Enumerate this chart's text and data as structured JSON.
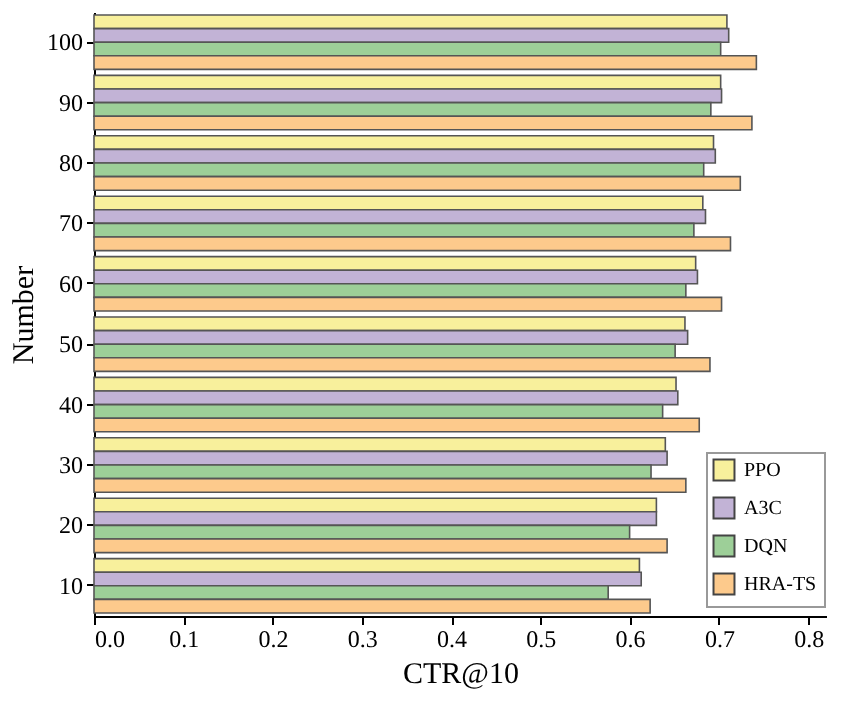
{
  "chart_data": {
    "type": "bar",
    "orientation": "horizontal",
    "xlabel": "CTR@10",
    "ylabel": "Number",
    "categories": [
      "100",
      "90",
      "80",
      "70",
      "60",
      "50",
      "40",
      "30",
      "20",
      "10"
    ],
    "series": [
      {
        "name": "PPO",
        "color": "#f8f09c",
        "values": [
          0.709,
          0.702,
          0.694,
          0.682,
          0.674,
          0.662,
          0.652,
          0.64,
          0.63,
          0.611
        ]
      },
      {
        "name": "A3C",
        "color": "#c2b3d6",
        "values": [
          0.711,
          0.703,
          0.696,
          0.685,
          0.676,
          0.665,
          0.654,
          0.642,
          0.63,
          0.613
        ]
      },
      {
        "name": "DQN",
        "color": "#9dcf98",
        "values": [
          0.702,
          0.691,
          0.683,
          0.672,
          0.663,
          0.651,
          0.637,
          0.624,
          0.6,
          0.576
        ]
      },
      {
        "name": "HRA-TS",
        "color": "#fdca8c",
        "values": [
          0.742,
          0.737,
          0.724,
          0.713,
          0.703,
          0.69,
          0.678,
          0.663,
          0.642,
          0.623
        ]
      }
    ],
    "xlim": [
      0,
      0.82
    ],
    "xticks": [
      {
        "value": 0,
        "label": "0.0"
      },
      0.1,
      0.2,
      0.3,
      0.4,
      0.5,
      0.6,
      0.7,
      0.8
    ],
    "legend": "bottom right"
  }
}
